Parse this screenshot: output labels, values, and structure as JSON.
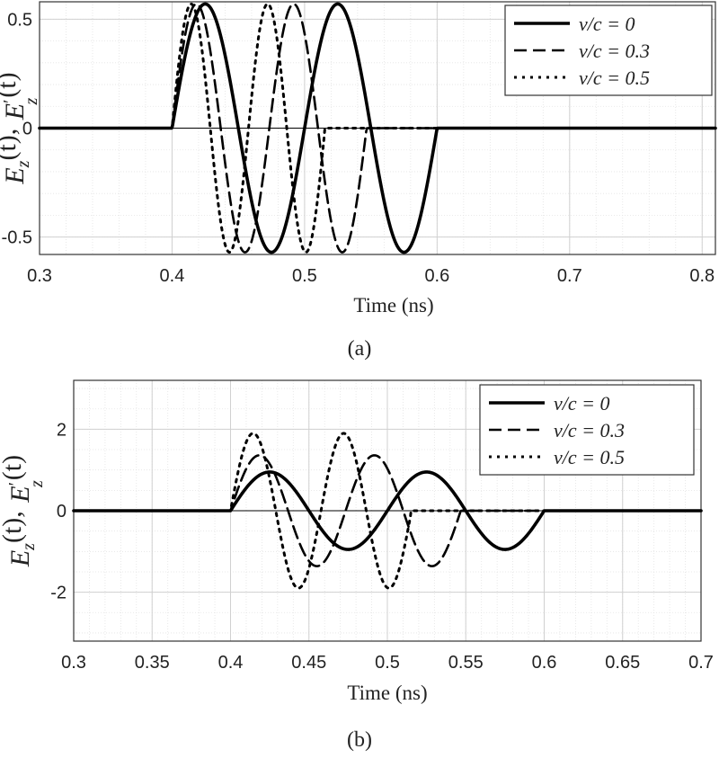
{
  "chart_data": [
    {
      "type": "line",
      "caption": "(a)",
      "xlabel": "Time (ns)",
      "ylabel": "E_z(t), E'_z(t)",
      "ylabel_parts": {
        "a": "E",
        "a_sub": "z",
        "a_args": "(t), ",
        "b": "E",
        "b_sup": "′",
        "b_sub": "z",
        "b_args": "(t)"
      },
      "xlim": [
        0.3,
        0.81
      ],
      "ylim": [
        -0.58,
        0.58
      ],
      "xticks": [
        0.3,
        0.4,
        0.5,
        0.6,
        0.7,
        0.8
      ],
      "xtick_labels": [
        "0.3",
        "0.4",
        "0.5",
        "0.6",
        "0.7",
        "0.8"
      ],
      "yticks": [
        -0.5,
        0,
        0.5
      ],
      "ytick_labels": [
        "-0.5",
        "0",
        "0.5"
      ],
      "grid": true,
      "legend_position": "top-right",
      "series": [
        {
          "name": "v/c = 0",
          "label_prefix": "v/c = ",
          "label_value": "0",
          "style": "solid",
          "amplitude": 0.57,
          "period_ns": 0.1,
          "start_ns": 0.4,
          "end_ns": 0.6
        },
        {
          "name": "v/c = 0.3",
          "label_prefix": "v/c = ",
          "label_value": "0.3",
          "style": "dashed",
          "amplitude": 0.57,
          "period_ns": 0.0734,
          "start_ns": 0.4,
          "end_ns": 0.547
        },
        {
          "name": "v/c = 0.5",
          "label_prefix": "v/c = ",
          "label_value": "0.5",
          "style": "dotted",
          "amplitude": 0.57,
          "period_ns": 0.0577,
          "start_ns": 0.4,
          "end_ns": 0.515
        }
      ]
    },
    {
      "type": "line",
      "caption": "(b)",
      "xlabel": "Time (ns)",
      "ylabel": "E_z(t), E'_z(t)",
      "ylabel_parts": {
        "a": "E",
        "a_sub": "z",
        "a_args": "(t), ",
        "b": "E",
        "b_sup": "′",
        "b_sub": "z",
        "b_args": "(t)"
      },
      "xlim": [
        0.3,
        0.7
      ],
      "ylim": [
        -3.2,
        3.2
      ],
      "xticks": [
        0.3,
        0.35,
        0.4,
        0.45,
        0.5,
        0.55,
        0.6,
        0.65,
        0.7
      ],
      "xtick_labels": [
        "0.3",
        "0.35",
        "0.4",
        "0.45",
        "0.5",
        "0.55",
        "0.6",
        "0.65",
        "0.7"
      ],
      "yticks": [
        -2,
        0,
        2
      ],
      "ytick_labels": [
        "-2",
        "0",
        "2"
      ],
      "grid": true,
      "legend_position": "top-right",
      "series": [
        {
          "name": "v/c = 0",
          "label_prefix": "v/c = ",
          "label_value": "0",
          "style": "solid",
          "amplitude": 0.95,
          "period_ns": 0.1,
          "start_ns": 0.4,
          "end_ns": 0.6
        },
        {
          "name": "v/c = 0.3",
          "label_prefix": "v/c = ",
          "label_value": "0.3",
          "style": "dashed",
          "amplitude": 1.36,
          "period_ns": 0.0734,
          "start_ns": 0.4,
          "end_ns": 0.547
        },
        {
          "name": "v/c = 0.5",
          "label_prefix": "v/c = ",
          "label_value": "0.5",
          "style": "dotted",
          "amplitude": 1.9,
          "period_ns": 0.0577,
          "start_ns": 0.4,
          "end_ns": 0.515
        }
      ]
    }
  ]
}
